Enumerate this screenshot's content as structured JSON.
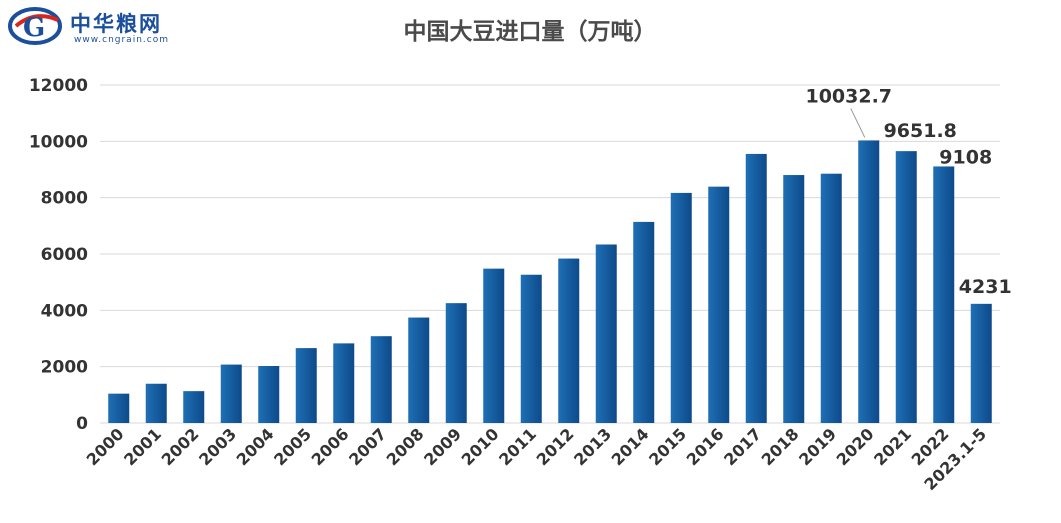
{
  "logo": {
    "name": "中华粮网",
    "url": "www.cngrain.com",
    "colors": {
      "primary": "#1b4f9c",
      "accent": "#d8261c"
    }
  },
  "chart_data": {
    "type": "bar",
    "title": "中国大豆进口量（万吨）",
    "categories": [
      "2000",
      "2001",
      "2002",
      "2003",
      "2004",
      "2005",
      "2006",
      "2007",
      "2008",
      "2009",
      "2010",
      "2011",
      "2012",
      "2013",
      "2014",
      "2015",
      "2016",
      "2017",
      "2018",
      "2019",
      "2020",
      "2021",
      "2022",
      "2023.1-5"
    ],
    "values": [
      1042,
      1394,
      1131,
      2074,
      2023,
      2659,
      2827,
      3082,
      3744,
      4255,
      5480,
      5264,
      5838,
      6338,
      7140,
      8169,
      8391,
      9553,
      8803,
      8851,
      10032.7,
      9651.8,
      9108,
      4231
    ],
    "data_labels": [
      {
        "category": "2020",
        "text": "10032.7"
      },
      {
        "category": "2021",
        "text": "9651.8"
      },
      {
        "category": "2022",
        "text": "9108"
      },
      {
        "category": "2023.1-5",
        "text": "4231"
      }
    ],
    "yticks": [
      "0",
      "2000",
      "4000",
      "6000",
      "8000",
      "10000",
      "12000"
    ],
    "ylim": [
      0,
      12000
    ],
    "grid": true,
    "bar_color": "#1f6fb5",
    "bar_color_dark": "#0d4a8a",
    "xlabel": "",
    "ylabel": ""
  }
}
